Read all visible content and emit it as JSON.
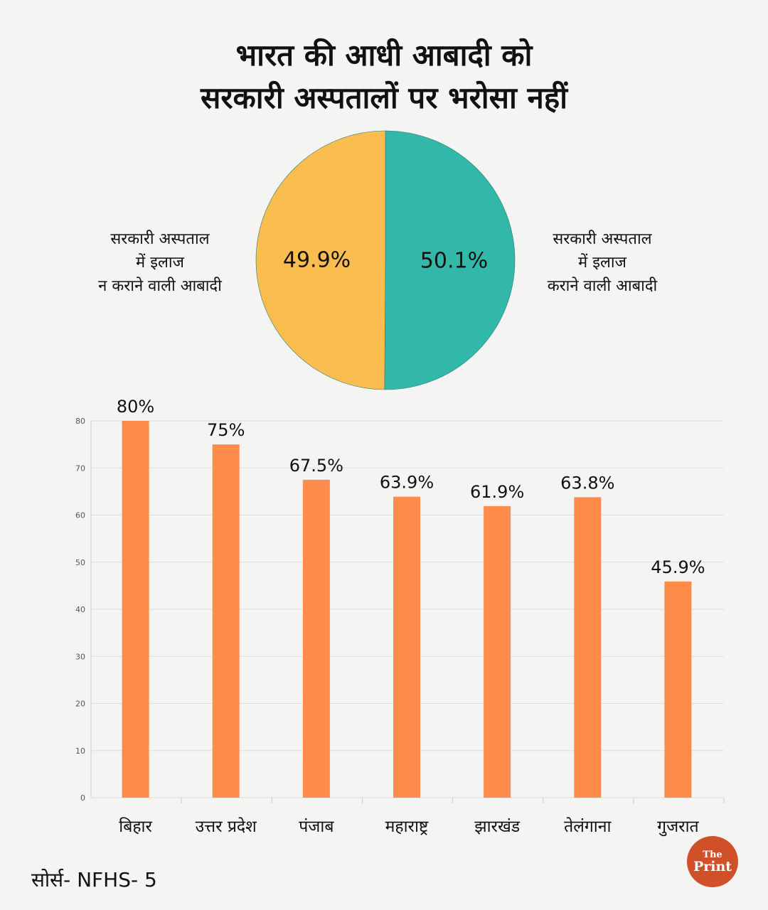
{
  "header": {
    "title_line1": "भारत की आधी आबादी को",
    "title_line2": "सरकारी अस्पतालों पर भरोसा नहीं"
  },
  "colors": {
    "pie_left": "#fbbd4f",
    "pie_right": "#31b8a8",
    "bar": "#ff8c4a"
  },
  "chart_data": [
    {
      "type": "pie",
      "slices": [
        {
          "value": 50.1,
          "label": "50.1%",
          "legend_lines": [
            "सरकारी अस्पताल",
            "में इलाज",
            "कराने वाली आबादी"
          ],
          "color": "#31b8a8"
        },
        {
          "value": 49.9,
          "label": "49.9%",
          "legend_lines": [
            "सरकारी अस्पताल",
            "में इलाज",
            "न कराने वाली आबादी"
          ],
          "color": "#fbbd4f"
        }
      ]
    },
    {
      "type": "bar",
      "categories": [
        "बिहार",
        "उत्तर प्रदेश",
        "पंजाब",
        "महाराष्ट्र",
        "झारखंड",
        "तेलंगाना",
        "गुजरात"
      ],
      "values": [
        80,
        75,
        67.5,
        63.9,
        61.9,
        63.8,
        45.9
      ],
      "value_labels": [
        "80%",
        "75%",
        "67.5%",
        "63.9%",
        "61.9%",
        "63.8%",
        "45.9%"
      ],
      "ylim": [
        0,
        80
      ],
      "yticks": [
        0,
        10,
        20,
        30,
        40,
        50,
        60,
        70,
        80
      ],
      "grid": true
    }
  ],
  "footer": {
    "source": "सोर्स- NFHS- 5",
    "logo_the": "The",
    "logo_print": "Print"
  }
}
